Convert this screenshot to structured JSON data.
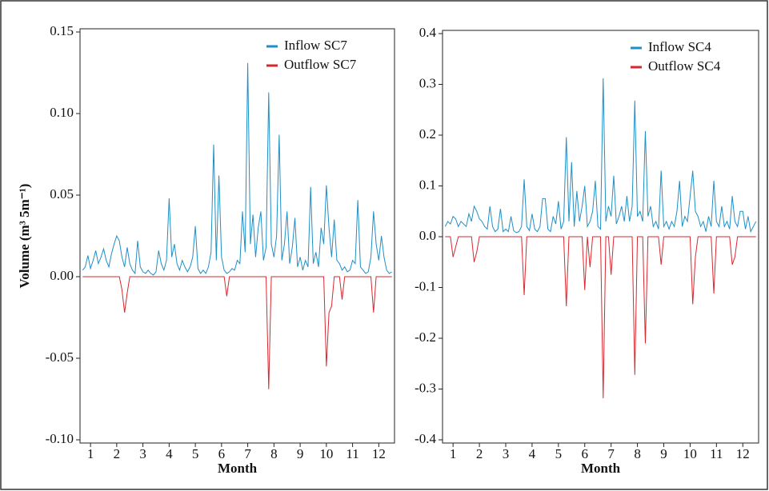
{
  "chart_data": [
    {
      "type": "line",
      "ylabel": "Volume (m³ 5m⁻¹)",
      "xlabel": "Month",
      "legend": "upper right",
      "xlim": [
        0.6,
        12.6
      ],
      "xticks": [
        1,
        2,
        3,
        4,
        5,
        6,
        7,
        8,
        9,
        10,
        11,
        12
      ],
      "ylim": [
        -0.1,
        0.15
      ],
      "yticks": [
        {
          "value": -0.1,
          "label": "-0.10"
        },
        -0.05,
        {
          "value": 0,
          "label": "0.00"
        },
        0.05,
        {
          "value": 0.1,
          "label": "0.10"
        },
        0.15
      ],
      "x": [
        0.7,
        0.8,
        0.9,
        1.0,
        1.1,
        1.2,
        1.3,
        1.4,
        1.5,
        1.6,
        1.7,
        1.8,
        1.9,
        2.0,
        2.1,
        2.2,
        2.3,
        2.4,
        2.5,
        2.6,
        2.7,
        2.8,
        2.9,
        3.0,
        3.1,
        3.2,
        3.3,
        3.4,
        3.5,
        3.6,
        3.7,
        3.8,
        3.9,
        4.0,
        4.1,
        4.2,
        4.3,
        4.4,
        4.5,
        4.6,
        4.7,
        4.8,
        4.9,
        5.0,
        5.1,
        5.2,
        5.3,
        5.4,
        5.5,
        5.6,
        5.7,
        5.8,
        5.9,
        6.0,
        6.1,
        6.2,
        6.3,
        6.4,
        6.5,
        6.6,
        6.7,
        6.8,
        6.9,
        7.0,
        7.1,
        7.2,
        7.3,
        7.4,
        7.5,
        7.6,
        7.7,
        7.8,
        7.9,
        8.0,
        8.1,
        8.2,
        8.3,
        8.4,
        8.5,
        8.6,
        8.7,
        8.8,
        8.9,
        9.0,
        9.1,
        9.2,
        9.3,
        9.4,
        9.5,
        9.6,
        9.7,
        9.8,
        9.9,
        10.0,
        10.1,
        10.2,
        10.3,
        10.4,
        10.5,
        10.6,
        10.7,
        10.8,
        10.9,
        11.0,
        11.1,
        11.2,
        11.3,
        11.4,
        11.5,
        11.6,
        11.7,
        11.8,
        11.9,
        12.0,
        12.1,
        12.2,
        12.3,
        12.4,
        12.5
      ],
      "series": [
        {
          "name": "Inflow SC7",
          "color": "#1f8fc6",
          "values": [
            0.004,
            0.006,
            0.013,
            0.005,
            0.01,
            0.016,
            0.008,
            0.012,
            0.017,
            0.01,
            0.006,
            0.014,
            0.02,
            0.025,
            0.022,
            0.012,
            0.006,
            0.018,
            0.008,
            0.004,
            0.002,
            0.022,
            0.006,
            0.003,
            0.002,
            0.004,
            0.002,
            0.001,
            0.003,
            0.016,
            0.008,
            0.004,
            0.01,
            0.048,
            0.012,
            0.02,
            0.008,
            0.004,
            0.01,
            0.006,
            0.003,
            0.006,
            0.012,
            0.031,
            0.005,
            0.002,
            0.004,
            0.002,
            0.006,
            0.015,
            0.081,
            0.01,
            0.062,
            0.012,
            0.004,
            0.002,
            0.003,
            0.005,
            0.004,
            0.01,
            0.008,
            0.04,
            0.015,
            0.131,
            0.02,
            0.038,
            0.012,
            0.03,
            0.04,
            0.01,
            0.018,
            0.113,
            0.02,
            0.012,
            0.025,
            0.087,
            0.01,
            0.02,
            0.04,
            0.008,
            0.018,
            0.036,
            0.006,
            0.012,
            0.004,
            0.01,
            0.006,
            0.055,
            0.008,
            0.015,
            0.006,
            0.03,
            0.02,
            0.056,
            0.03,
            0.012,
            0.035,
            0.01,
            0.008,
            0.004,
            0.006,
            0.003,
            0.004,
            0.01,
            0.008,
            0.047,
            0.006,
            0.004,
            0.002,
            0.003,
            0.012,
            0.04,
            0.02,
            0.01,
            0.025,
            0.012,
            0.004,
            0.002,
            0.003
          ]
        },
        {
          "name": "Outflow SC7",
          "color": "#d7282f",
          "values": [
            0,
            0,
            0,
            0,
            0,
            0,
            0,
            0,
            0,
            0,
            0,
            0,
            0,
            0,
            0,
            -0.008,
            -0.022,
            -0.01,
            0,
            0,
            0,
            0,
            0,
            0,
            0,
            0,
            0,
            0,
            0,
            0,
            0,
            0,
            0,
            0,
            0,
            0,
            0,
            0,
            0,
            0,
            0,
            0,
            0,
            0,
            0,
            0,
            0,
            0,
            0,
            0,
            0,
            0,
            0,
            0,
            0,
            -0.012,
            0,
            0,
            0,
            0,
            0,
            0,
            0,
            0,
            0,
            0,
            0,
            0,
            0,
            0,
            0,
            -0.069,
            0,
            0,
            0,
            0,
            0,
            0,
            0,
            0,
            0,
            0,
            0,
            0,
            0,
            0,
            0,
            0,
            0,
            0,
            0,
            0,
            0,
            -0.055,
            -0.022,
            -0.018,
            0,
            0,
            0,
            -0.014,
            0,
            0,
            0,
            0,
            0,
            0,
            0,
            0,
            0,
            0,
            0,
            -0.022,
            0,
            0,
            0,
            0,
            0,
            0,
            0
          ]
        }
      ]
    },
    {
      "type": "line",
      "xlabel": "Month",
      "legend": "upper right",
      "xlim": [
        0.6,
        12.6
      ],
      "xticks": [
        1,
        2,
        3,
        4,
        5,
        6,
        7,
        8,
        9,
        10,
        11,
        12
      ],
      "ylim": [
        -0.4,
        0.4
      ],
      "yticks": [
        -0.4,
        -0.3,
        -0.2,
        -0.1,
        {
          "value": 0,
          "label": "0.0"
        },
        0.1,
        0.2,
        0.3,
        0.4
      ],
      "x": [
        0.7,
        0.8,
        0.9,
        1.0,
        1.1,
        1.2,
        1.3,
        1.4,
        1.5,
        1.6,
        1.7,
        1.8,
        1.9,
        2.0,
        2.1,
        2.2,
        2.3,
        2.4,
        2.5,
        2.6,
        2.7,
        2.8,
        2.9,
        3.0,
        3.1,
        3.2,
        3.3,
        3.4,
        3.5,
        3.6,
        3.7,
        3.8,
        3.9,
        4.0,
        4.1,
        4.2,
        4.3,
        4.4,
        4.5,
        4.6,
        4.7,
        4.8,
        4.9,
        5.0,
        5.1,
        5.2,
        5.3,
        5.4,
        5.5,
        5.6,
        5.7,
        5.8,
        5.9,
        6.0,
        6.1,
        6.2,
        6.3,
        6.4,
        6.5,
        6.6,
        6.7,
        6.8,
        6.9,
        7.0,
        7.1,
        7.2,
        7.3,
        7.4,
        7.5,
        7.6,
        7.7,
        7.8,
        7.9,
        8.0,
        8.1,
        8.2,
        8.3,
        8.4,
        8.5,
        8.6,
        8.7,
        8.8,
        8.9,
        9.0,
        9.1,
        9.2,
        9.3,
        9.4,
        9.5,
        9.6,
        9.7,
        9.8,
        9.9,
        10.0,
        10.1,
        10.2,
        10.3,
        10.4,
        10.5,
        10.6,
        10.7,
        10.8,
        10.9,
        11.0,
        11.1,
        11.2,
        11.3,
        11.4,
        11.5,
        11.6,
        11.7,
        11.8,
        11.9,
        12.0,
        12.1,
        12.2,
        12.3,
        12.4,
        12.5
      ],
      "series": [
        {
          "name": "Inflow SC4",
          "color": "#1f8fc6",
          "values": [
            0.02,
            0.03,
            0.025,
            0.04,
            0.035,
            0.02,
            0.03,
            0.025,
            0.02,
            0.045,
            0.03,
            0.06,
            0.05,
            0.035,
            0.03,
            0.02,
            0.015,
            0.06,
            0.02,
            0.01,
            0.015,
            0.055,
            0.01,
            0.015,
            0.01,
            0.04,
            0.012,
            0.008,
            0.01,
            0.02,
            0.113,
            0.02,
            0.012,
            0.045,
            0.015,
            0.01,
            0.02,
            0.075,
            0.075,
            0.015,
            0.01,
            0.04,
            0.025,
            0.07,
            0.015,
            0.03,
            0.196,
            0.03,
            0.147,
            0.02,
            0.09,
            0.03,
            0.06,
            0.1,
            0.02,
            0.03,
            0.05,
            0.11,
            0.02,
            0.015,
            0.312,
            0.03,
            0.06,
            0.04,
            0.12,
            0.025,
            0.04,
            0.06,
            0.03,
            0.08,
            0.03,
            0.06,
            0.268,
            0.04,
            0.05,
            0.03,
            0.208,
            0.04,
            0.06,
            0.02,
            0.03,
            0.015,
            0.13,
            0.02,
            0.03,
            0.015,
            0.03,
            0.02,
            0.05,
            0.11,
            0.02,
            0.04,
            0.03,
            0.08,
            0.13,
            0.05,
            0.04,
            0.02,
            0.03,
            0.01,
            0.04,
            0.02,
            0.11,
            0.03,
            0.02,
            0.06,
            0.02,
            0.03,
            0.015,
            0.08,
            0.03,
            0.02,
            0.05,
            0.05,
            0.015,
            0.04,
            0.01,
            0.02,
            0.03
          ]
        },
        {
          "name": "Outflow SC4",
          "color": "#d7282f",
          "values": [
            0,
            0,
            0,
            -0.04,
            -0.02,
            0,
            0,
            0,
            0,
            0,
            0,
            -0.05,
            -0.03,
            0,
            0,
            0,
            0,
            0,
            0,
            0,
            0,
            0,
            0,
            0,
            0,
            0,
            0,
            0,
            0,
            0,
            -0.115,
            0,
            0,
            0,
            0,
            0,
            0,
            0,
            0,
            0,
            0,
            0,
            0,
            0,
            0,
            0,
            -0.137,
            0,
            0,
            0,
            0,
            0,
            0,
            -0.105,
            0,
            -0.06,
            0,
            0,
            0,
            0,
            -0.318,
            0,
            0,
            -0.075,
            0,
            0,
            0,
            0,
            0,
            0,
            0,
            0,
            -0.272,
            0,
            0,
            0,
            -0.21,
            0,
            0,
            0,
            0,
            0,
            -0.055,
            0,
            0,
            0,
            0,
            0,
            0,
            0,
            0,
            0,
            0,
            0,
            -0.133,
            -0.04,
            0,
            0,
            0,
            0,
            0,
            0,
            -0.112,
            0,
            0,
            0,
            0,
            0,
            0,
            -0.055,
            -0.04,
            0,
            0,
            0,
            0,
            0,
            0,
            0,
            0
          ]
        }
      ]
    }
  ]
}
